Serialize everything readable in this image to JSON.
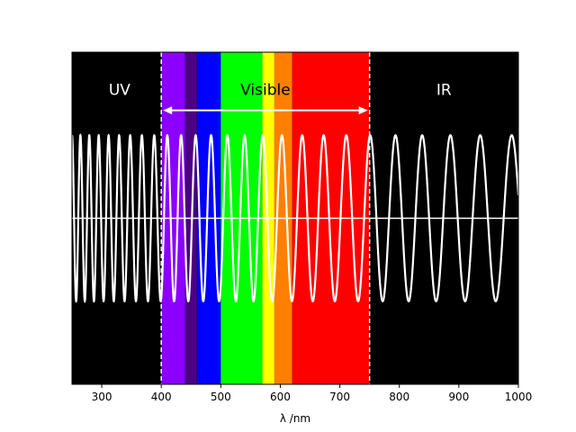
{
  "chart_data": {
    "type": "line",
    "title": "",
    "xlabel": "λ /nm",
    "ylabel": "",
    "xlim": [
      250,
      1000
    ],
    "ylim": [
      -2,
      2
    ],
    "grid": false,
    "legend": "none",
    "x_ticks": [
      300,
      400,
      500,
      600,
      700,
      800,
      900,
      1000
    ],
    "x_tick_labels": [
      "300",
      "400",
      "500",
      "600",
      "700",
      "800",
      "900",
      "1000"
    ],
    "background_color": "#000000",
    "wave": {
      "description_text": "",
      "amplitude": 1.0,
      "phase_reference_nm": 250,
      "x_start": 250,
      "x_end": 1000,
      "color": "#ffffff",
      "baseline_y": 0
    },
    "bands": [
      {
        "x0": 400,
        "x1": 440,
        "color": "#8b00ff"
      },
      {
        "x0": 440,
        "x1": 460,
        "color": "#4b0082"
      },
      {
        "x0": 460,
        "x1": 500,
        "color": "#0000ff"
      },
      {
        "x0": 500,
        "x1": 570,
        "color": "#00ff00"
      },
      {
        "x0": 570,
        "x1": 590,
        "color": "#ffff00"
      },
      {
        "x0": 590,
        "x1": 620,
        "color": "#ff7f00"
      },
      {
        "x0": 620,
        "x1": 750,
        "color": "#ff0000"
      }
    ],
    "dashed_lines_x": [
      400,
      750
    ],
    "arrow": {
      "x0": 400,
      "x1": 750,
      "y": 1.3,
      "color": "#ffffff"
    },
    "annotations": [
      {
        "key": "uv",
        "text": "UV",
        "x": 330,
        "y": 1.55,
        "color": "#ffffff"
      },
      {
        "key": "visible",
        "text": "Visible",
        "x": 575,
        "y": 1.55,
        "color": "#000000"
      },
      {
        "key": "ir",
        "text": "IR",
        "x": 875,
        "y": 1.55,
        "color": "#ffffff"
      }
    ]
  }
}
